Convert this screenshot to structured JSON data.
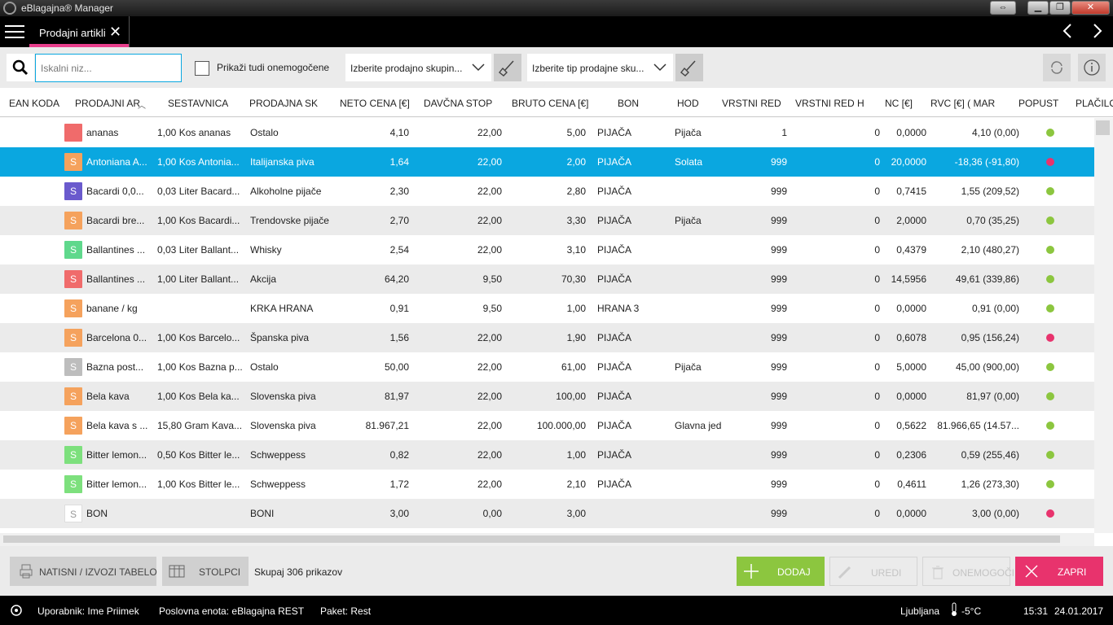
{
  "window": {
    "title": "eBlagajna® Manager"
  },
  "tabs": {
    "active_label": "Prodajni artikli"
  },
  "toolbar": {
    "search_placeholder": "Iskalni niz...",
    "show_disabled_label": "Prikaži tudi onemogočene",
    "sales_group_select": "Izberite prodajno skupin...",
    "sales_type_select": "Izberite tip prodajne sku..."
  },
  "columns": [
    "EAN KODA",
    "PRODAJNI AR",
    "SESTAVNICA",
    "PRODAJNA SK",
    "NETO CENA [€]",
    "DAVČNA STOP",
    "BRUTO CENA [€]",
    "BON",
    "HOD",
    "VRSTNI RED",
    "VRSTNI RED H",
    "NC [€]",
    "RVC [€] ( MAR",
    "POPUST",
    "PLAČILO"
  ],
  "rows": [
    {
      "badge": "",
      "badge_color": "#f06b6b",
      "name": "ananas",
      "recipe": "1,00 Kos ananas",
      "group": "Ostalo",
      "net": "4,10",
      "tax": "22,00",
      "gross": "5,00",
      "bon": "PIJAČA",
      "hod": "Pijača",
      "order": "1",
      "order_h": "0",
      "nc": "0,0000",
      "rvc": "4,10 (0,00)",
      "dot": "#8cc63f"
    },
    {
      "badge": "S",
      "badge_color": "#f5a25d",
      "name": "Antoniana A...",
      "recipe": "1,00 Kos Antonia...",
      "group": "Italijanska piva",
      "net": "1,64",
      "tax": "22,00",
      "gross": "2,00",
      "bon": "PIJAČA",
      "hod": "Solata",
      "order": "999",
      "order_h": "0",
      "nc": "20,0000",
      "rvc": "-18,36 (-91,80)",
      "dot": "#e8336d",
      "selected": true
    },
    {
      "badge": "S",
      "badge_color": "#6a5acd",
      "name": "Bacardi 0,0...",
      "recipe": "0,03 Liter Bacard...",
      "group": "Alkoholne pijače",
      "net": "2,30",
      "tax": "22,00",
      "gross": "2,80",
      "bon": "PIJAČA",
      "hod": "",
      "order": "999",
      "order_h": "0",
      "nc": "0,7415",
      "rvc": "1,55 (209,52)",
      "dot": "#8cc63f"
    },
    {
      "badge": "S",
      "badge_color": "#f5a25d",
      "name": "Bacardi bre...",
      "recipe": "1,00 Kos Bacardi...",
      "group": "Trendovske pijače",
      "net": "2,70",
      "tax": "22,00",
      "gross": "3,30",
      "bon": "PIJAČA",
      "hod": "Pijača",
      "order": "999",
      "order_h": "0",
      "nc": "2,0000",
      "rvc": "0,70 (35,25)",
      "dot": "#8cc63f"
    },
    {
      "badge": "S",
      "badge_color": "#5fd88c",
      "name": "Ballantines ...",
      "recipe": "0,03 Liter Ballant...",
      "group": "Whisky",
      "net": "2,54",
      "tax": "22,00",
      "gross": "3,10",
      "bon": "PIJAČA",
      "hod": "",
      "order": "999",
      "order_h": "0",
      "nc": "0,4379",
      "rvc": "2,10 (480,27)",
      "dot": "#8cc63f"
    },
    {
      "badge": "S",
      "badge_color": "#f06b6b",
      "name": "Ballantines ...",
      "recipe": "1,00 Liter Ballant...",
      "group": "Akcija",
      "net": "64,20",
      "tax": "9,50",
      "gross": "70,30",
      "bon": "PIJAČA",
      "hod": "",
      "order": "999",
      "order_h": "0",
      "nc": "14,5956",
      "rvc": "49,61 (339,86)",
      "dot": "#8cc63f"
    },
    {
      "badge": "S",
      "badge_color": "#f5a25d",
      "name": "banane / kg",
      "recipe": "",
      "group": "KRKA HRANA",
      "net": "0,91",
      "tax": "9,50",
      "gross": "1,00",
      "bon": "HRANA 3",
      "hod": "",
      "order": "999",
      "order_h": "0",
      "nc": "0,0000",
      "rvc": "0,91 (0,00)",
      "dot": "#8cc63f"
    },
    {
      "badge": "S",
      "badge_color": "#f5a25d",
      "name": "Barcelona 0...",
      "recipe": "1,00 Kos Barcelo...",
      "group": "Španska piva",
      "net": "1,56",
      "tax": "22,00",
      "gross": "1,90",
      "bon": "PIJAČA",
      "hod": "",
      "order": "999",
      "order_h": "0",
      "nc": "0,6078",
      "rvc": "0,95 (156,24)",
      "dot": "#e8336d"
    },
    {
      "badge": "S",
      "badge_color": "#bdbdbd",
      "name": "Bazna post...",
      "recipe": "1,00 Kos Bazna p...",
      "group": "Ostalo",
      "net": "50,00",
      "tax": "22,00",
      "gross": "61,00",
      "bon": "PIJAČA",
      "hod": "Pijača",
      "order": "999",
      "order_h": "0",
      "nc": "5,0000",
      "rvc": "45,00 (900,00)",
      "dot": "#8cc63f"
    },
    {
      "badge": "S",
      "badge_color": "#f5a25d",
      "name": "Bela kava",
      "recipe": "1,00 Kos Bela ka...",
      "group": "Slovenska piva",
      "net": "81,97",
      "tax": "22,00",
      "gross": "100,00",
      "bon": "PIJAČA",
      "hod": "",
      "order": "999",
      "order_h": "0",
      "nc": "0,0000",
      "rvc": "81,97 (0,00)",
      "dot": "#8cc63f"
    },
    {
      "badge": "S",
      "badge_color": "#f5a25d",
      "name": "Bela kava s ...",
      "recipe": "15,80 Gram Kava...",
      "group": "Slovenska piva",
      "net": "81.967,21",
      "tax": "22,00",
      "gross": "100.000,00",
      "bon": "PIJAČA",
      "hod": "Glavna jed",
      "order": "999",
      "order_h": "0",
      "nc": "0,5622",
      "rvc": "81.966,65 (14.57...",
      "dot": "#8cc63f"
    },
    {
      "badge": "S",
      "badge_color": "#7de07d",
      "name": "Bitter lemon...",
      "recipe": "0,50 Kos Bitter le...",
      "group": "Schweppess",
      "net": "0,82",
      "tax": "22,00",
      "gross": "1,00",
      "bon": "PIJAČA",
      "hod": "",
      "order": "999",
      "order_h": "0",
      "nc": "0,2306",
      "rvc": "0,59 (255,46)",
      "dot": "#8cc63f"
    },
    {
      "badge": "S",
      "badge_color": "#7de07d",
      "name": "Bitter lemon...",
      "recipe": "1,00 Kos Bitter le...",
      "group": "Schweppess",
      "net": "1,72",
      "tax": "22,00",
      "gross": "2,10",
      "bon": "PIJAČA",
      "hod": "",
      "order": "999",
      "order_h": "0",
      "nc": "0,4611",
      "rvc": "1,26 (273,30)",
      "dot": "#8cc63f"
    },
    {
      "badge": "S",
      "badge_color": "#ffffff",
      "name": "BON",
      "recipe": "",
      "group": "BONI",
      "net": "3,00",
      "tax": "0,00",
      "gross": "3,00",
      "bon": "",
      "hod": "",
      "order": "999",
      "order_h": "0",
      "nc": "0,0000",
      "rvc": "3,00 (0,00)",
      "dot": "#e8336d"
    }
  ],
  "footer": {
    "print_label": "NATISNI / IZVOZI TABELO",
    "columns_label": "STOLPCI",
    "total": "Skupaj 306 prikazov",
    "add_label": "DODAJ",
    "edit_label": "UREDI",
    "disable_label": "ONEMOGOČI",
    "close_label": "ZAPRI"
  },
  "status": {
    "user": "Uporabnik: Ime Priimek",
    "unit": "Poslovna enota: eBlagajna REST",
    "package": "Paket: Rest",
    "city": "Ljubljana",
    "temp": "-5°C",
    "time": "15:31",
    "date": "24.01.2017"
  },
  "colors": {
    "accent": "#0aa7e0",
    "tab_underline": "#e83e8c",
    "add": "#8cc63f",
    "close": "#e8336d"
  },
  "icons": [
    "app-icon",
    "menu-icon",
    "close-icon",
    "chevron-left-icon",
    "chevron-right-icon",
    "search-icon",
    "broom-icon",
    "refresh-icon",
    "info-icon",
    "sort-icon",
    "printer-icon",
    "columns-icon",
    "plus-icon",
    "pencil-icon",
    "trash-icon",
    "x-icon",
    "logo-icon",
    "thermometer-icon"
  ]
}
